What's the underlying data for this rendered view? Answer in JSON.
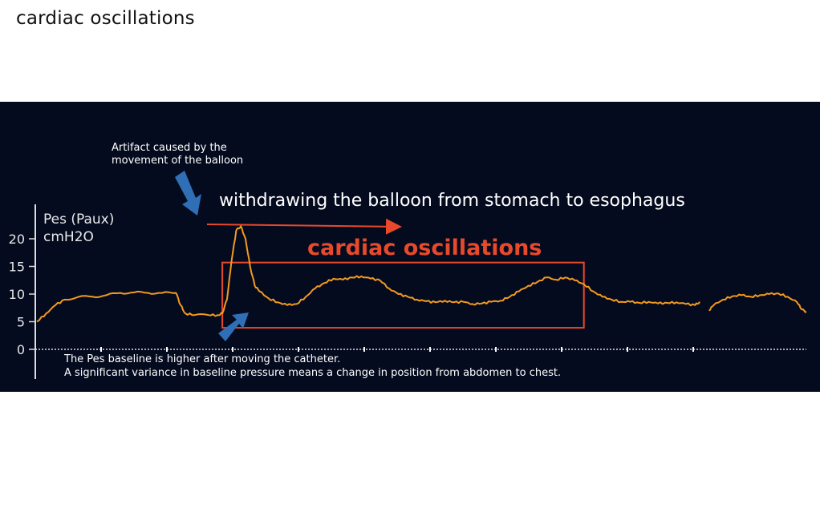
{
  "slide": {
    "title": "cardiac oscillations"
  },
  "colors": {
    "background": "#050b1f",
    "trace": "#f39a1e",
    "highlight": "#e8492b",
    "arrow_blue": "#2f6fb6",
    "text": "#ffffff",
    "axis": "#dddddd"
  },
  "annotations": {
    "artifact": [
      "Artifact caused by the",
      "movement of the balloon"
    ],
    "withdrawing": "withdrawing the balloon from stomach to esophagus",
    "highlight_label": "cardiac oscillations",
    "baseline_note": [
      "The Pes baseline is higher after moving the catheter.",
      "A significant variance in baseline pressure means a change in position from abdomen to chest."
    ]
  },
  "chart_data": {
    "type": "line",
    "ylabel": [
      "Pes (Paux)",
      "cmH2O"
    ],
    "yticks": [
      0,
      5,
      10,
      15,
      20
    ],
    "ylim": [
      0,
      23
    ],
    "grid": false,
    "series": [
      {
        "values_note": "",
        "points": [
          [
            0,
            5
          ],
          [
            2,
            6.5
          ],
          [
            4,
            8
          ],
          [
            6,
            9
          ],
          [
            9,
            9.5
          ],
          [
            12,
            9.5
          ],
          [
            15,
            9.8
          ],
          [
            18,
            10.2
          ],
          [
            21,
            10.3
          ],
          [
            24,
            10.2
          ],
          [
            27,
            10.2
          ],
          [
            30,
            10.2
          ],
          [
            31,
            8
          ],
          [
            32,
            6.5
          ],
          [
            34,
            6.2
          ],
          [
            37,
            6.2
          ],
          [
            39,
            6.2
          ],
          [
            40,
            6.5
          ],
          [
            41,
            9
          ],
          [
            42,
            16
          ],
          [
            43,
            21.5
          ],
          [
            44,
            22.3
          ],
          [
            45,
            20
          ],
          [
            46,
            15
          ],
          [
            47,
            11.5
          ],
          [
            48,
            10.5
          ],
          [
            50,
            9.2
          ],
          [
            52,
            8.5
          ],
          [
            54,
            8
          ],
          [
            56,
            8.2
          ],
          [
            58,
            9.5
          ],
          [
            60,
            11
          ],
          [
            62,
            12
          ],
          [
            64,
            12.8
          ],
          [
            66,
            12.6
          ],
          [
            68,
            13
          ],
          [
            70,
            13.2
          ],
          [
            72,
            12.8
          ],
          [
            74,
            12.5
          ],
          [
            76,
            11
          ],
          [
            78,
            10
          ],
          [
            80,
            9.5
          ],
          [
            82,
            9
          ],
          [
            84,
            8.7
          ],
          [
            86,
            8.5
          ],
          [
            88,
            8.8
          ],
          [
            90,
            8.5
          ],
          [
            92,
            8.6
          ],
          [
            94,
            8.2
          ],
          [
            96,
            8.3
          ],
          [
            98,
            8.6
          ],
          [
            100,
            8.8
          ],
          [
            102,
            9.5
          ],
          [
            104,
            10.5
          ],
          [
            106,
            11.5
          ],
          [
            108,
            12.2
          ],
          [
            110,
            13
          ],
          [
            112,
            12.6
          ],
          [
            114,
            13
          ],
          [
            116,
            12.5
          ],
          [
            118,
            11.8
          ],
          [
            120,
            10.5
          ],
          [
            122,
            9.5
          ],
          [
            124,
            9
          ],
          [
            126,
            8.6
          ],
          [
            128,
            8.6
          ],
          [
            130,
            8.4
          ],
          [
            132,
            8.6
          ],
          [
            134,
            8.3
          ],
          [
            136,
            8.4
          ],
          [
            138,
            8.5
          ],
          [
            140,
            8.2
          ],
          [
            142,
            8.0
          ],
          [
            143,
            8.6
          ]
        ]
      },
      {
        "values_note": "",
        "points": [
          [
            145,
            7.0
          ],
          [
            146,
            8
          ],
          [
            148,
            9
          ],
          [
            150,
            9.6
          ],
          [
            152,
            9.8
          ],
          [
            154,
            9.5
          ],
          [
            156,
            9.8
          ],
          [
            158,
            10
          ],
          [
            160,
            10.1
          ],
          [
            162,
            9.5
          ],
          [
            164,
            8.5
          ],
          [
            165,
            7.2
          ],
          [
            166,
            6.8
          ]
        ]
      }
    ],
    "xlim": [
      0,
      166
    ],
    "highlight_box": {
      "x": [
        40,
        118
      ],
      "y": [
        3.9,
        15.7
      ]
    }
  }
}
